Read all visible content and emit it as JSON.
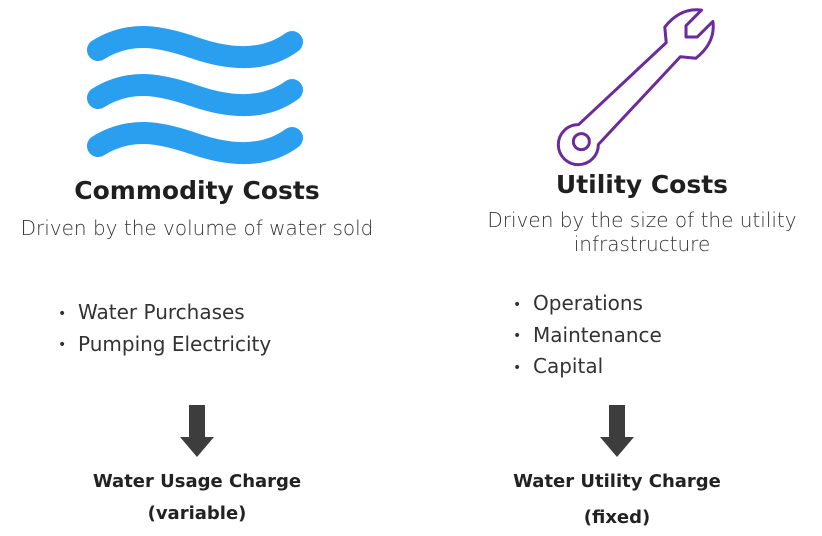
{
  "columns": [
    {
      "title": "Commodity Costs",
      "description": "Driven by the volume of water sold",
      "bullets": [
        "Water Purchases",
        "Pumping Electricity"
      ],
      "charge": [
        "Water Usage Charge",
        "(variable)"
      ]
    },
    {
      "title": "Utility Costs",
      "description": "Driven by the size of the utility infrastructure",
      "bullets": [
        "Operations",
        "Maintenance",
        "Capital"
      ],
      "charge": [
        "Water Utility Charge",
        "(fixed)"
      ]
    }
  ]
}
